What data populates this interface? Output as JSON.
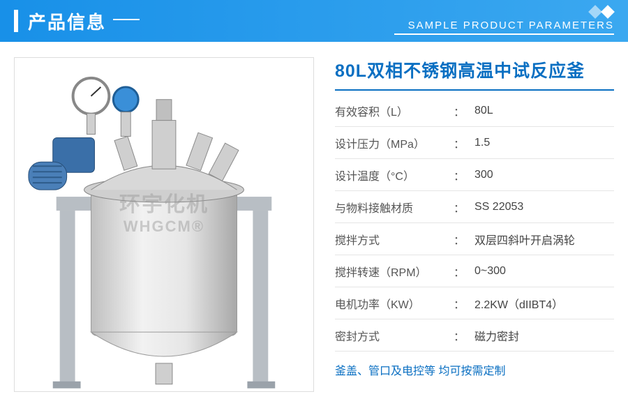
{
  "header": {
    "title_cn": "产品信息",
    "title_en": "SAMPLE PRODUCT PARAMETERS",
    "bg_gradient_from": "#1890e8",
    "bg_gradient_to": "#3ba8f0"
  },
  "watermark": {
    "cn": "环宇化机",
    "en": "WHGCM®"
  },
  "product": {
    "title": "80L双相不锈钢高温中试反应釜",
    "title_color": "#0a6fc2",
    "specs": [
      {
        "label": "有效容积（L）",
        "value": "80L"
      },
      {
        "label": "设计压力（MPa）",
        "value": "1.5"
      },
      {
        "label": "设计温度（°C）",
        "value": "300"
      },
      {
        "label": "与物料接触材质",
        "value": "SS 22053"
      },
      {
        "label": "搅拌方式",
        "value": "双层四斜叶开启涡轮"
      },
      {
        "label": "搅拌转速（RPM）",
        "value": "0~300"
      },
      {
        "label": "电机功率（KW）",
        "value": "2.2KW（dIIBT4）"
      },
      {
        "label": "密封方式",
        "value": "磁力密封"
      }
    ],
    "note": "釜盖、管口及电控等 均可按需定制"
  },
  "image": {
    "vessel_fill": "#d8d8d8",
    "vessel_stroke": "#9a9a9a",
    "frame_color": "#b8bec4",
    "motor_color": "#3a6fa8",
    "gauge_color": "#ffffff",
    "gauge_ring": "#888888"
  }
}
